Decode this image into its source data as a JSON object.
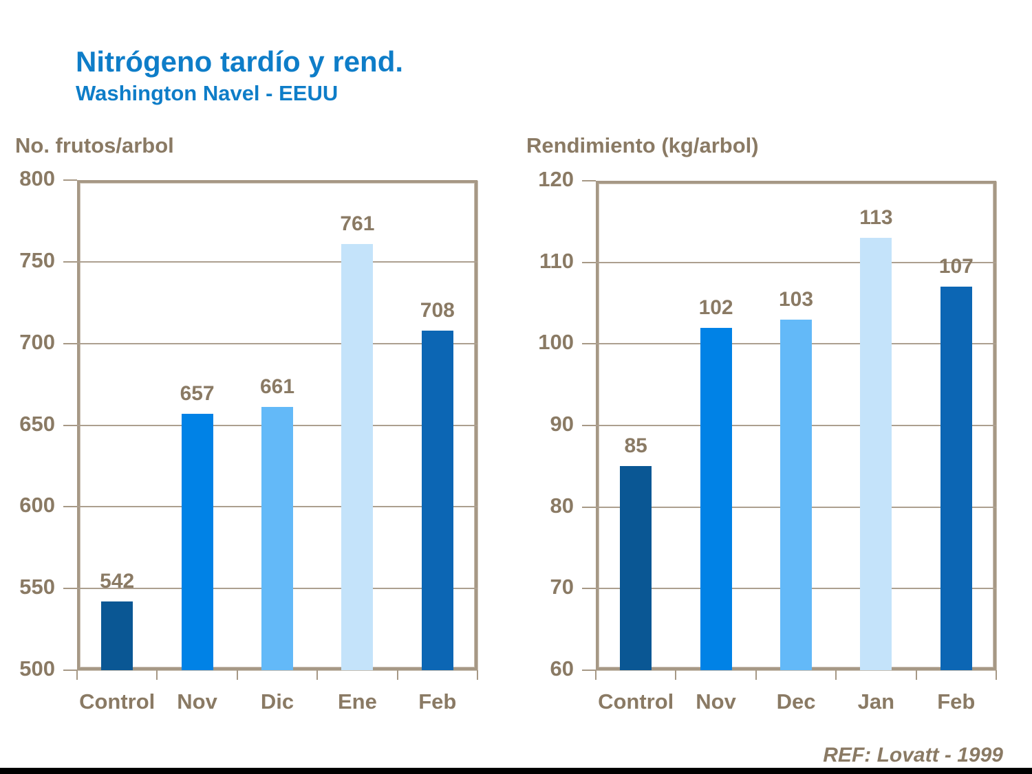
{
  "page": {
    "title": "Nitrógeno tardío y rend.",
    "subtitle": "Washington Navel - EEUU",
    "reference": "REF: Lovatt - 1999"
  },
  "colors": {
    "title_blue": "#0E7DC8",
    "label_brown": "#8A7A64",
    "frame_taupe": "#A69885",
    "bar_control": "#0A5794",
    "bar_nov": "#0082E6",
    "bar_dec": "#63B9F8",
    "bar_jan": "#C4E3FA",
    "bar_feb": "#0C66B4"
  },
  "chart_data": [
    {
      "type": "bar",
      "title": "No. frutos/arbol",
      "categories": [
        "Control",
        "Nov",
        "Dic",
        "Ene",
        "Feb"
      ],
      "values": [
        542,
        657,
        661,
        761,
        708
      ],
      "data_labels": [
        "542",
        "657",
        "661",
        "761",
        "708"
      ],
      "bar_colors": [
        "#0A5794",
        "#0082E6",
        "#63B9F8",
        "#C4E3FA",
        "#0C66B4"
      ],
      "xlabel": "",
      "ylabel": "No. frutos/arbol",
      "ylim": [
        500,
        800
      ],
      "yticks": [
        500,
        550,
        600,
        650,
        700,
        750,
        800
      ],
      "grid": true,
      "legend": "none"
    },
    {
      "type": "bar",
      "title": "Rendimiento (kg/arbol)",
      "categories": [
        "Control",
        "Nov",
        "Dec",
        "Jan",
        "Feb"
      ],
      "values": [
        85,
        102,
        103,
        113,
        107
      ],
      "data_labels": [
        "85",
        "102",
        "103",
        "113",
        "107"
      ],
      "bar_colors": [
        "#0A5794",
        "#0082E6",
        "#63B9F8",
        "#C4E3FA",
        "#0C66B4"
      ],
      "xlabel": "",
      "ylabel": "Rendimiento (kg/arbol)",
      "ylim": [
        60,
        120
      ],
      "yticks": [
        60,
        70,
        80,
        90,
        100,
        110,
        120
      ],
      "grid": true,
      "legend": "none"
    }
  ]
}
